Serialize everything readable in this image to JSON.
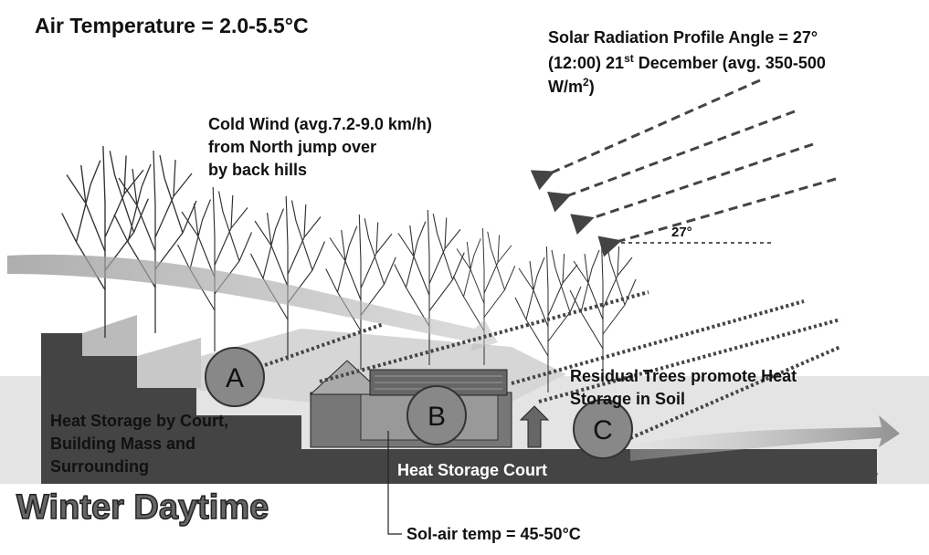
{
  "header": {
    "title": "Air Temperature = 2.0-5.5°C"
  },
  "solar": {
    "line1": "Solar Radiation Profile Angle = 27°",
    "line2a": "(12:00) 21",
    "line2sup": "st",
    "line2b": " December (avg. 350-500",
    "line3a": "W/m",
    "line3sup": "2",
    "line3b": ")",
    "angle": "27°"
  },
  "wind": {
    "lines": [
      "Cold Wind (avg.7.2-9.0 km/h)",
      "from North jump over",
      "by back hills"
    ]
  },
  "markers": [
    "A",
    "B",
    "C"
  ],
  "heat_storage": {
    "lines": [
      "Heat Storage by Court,",
      "Building Mass and",
      "Surrounding"
    ]
  },
  "trees": {
    "lines": [
      "Residual Trees promote Heat",
      "Storage in Soil"
    ]
  },
  "court": "Heat Storage Court",
  "season": "Winter Daytime",
  "sol_air": "Sol-air temp = 45-50°C"
}
